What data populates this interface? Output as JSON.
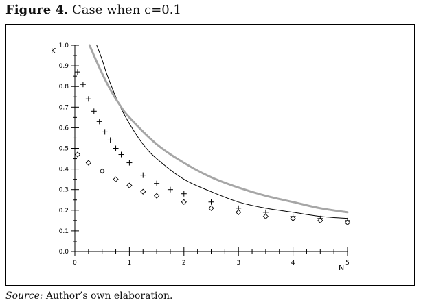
{
  "figure": {
    "label": "Figure 4.",
    "caption": "Case when c=0.1"
  },
  "source": {
    "label": "Source:",
    "text": "Author’s own elaboration."
  },
  "chart_data": {
    "type": "line",
    "xlabel": "N",
    "ylabel": "K",
    "xlim": [
      0,
      5
    ],
    "ylim": [
      0,
      1.0
    ],
    "x_ticks": [
      "0",
      "1",
      "2",
      "3",
      "4",
      "5"
    ],
    "y_ticks": [
      "0.0",
      "0.1",
      "0.2",
      "0.3",
      "0.4",
      "0.5",
      "0.6",
      "0.7",
      "0.8",
      "0.9",
      "1.0"
    ],
    "grid": false,
    "legend": "none",
    "series": [
      {
        "style": "line",
        "color": "#000000",
        "x": [
          0.4,
          0.5,
          0.6,
          0.8,
          1.0,
          1.25,
          1.5,
          2.0,
          2.5,
          3.0,
          3.5,
          4.0,
          4.5,
          5.0
        ],
        "y": [
          1.0,
          0.93,
          0.85,
          0.72,
          0.62,
          0.52,
          0.45,
          0.35,
          0.29,
          0.24,
          0.21,
          0.19,
          0.17,
          0.16
        ]
      },
      {
        "style": "line",
        "color": "#a6a6a6",
        "x": [
          0.27,
          0.4,
          0.6,
          0.8,
          1.0,
          1.5,
          2.0,
          2.5,
          3.0,
          3.5,
          4.0,
          4.5,
          5.0
        ],
        "y": [
          1.0,
          0.92,
          0.81,
          0.72,
          0.65,
          0.52,
          0.43,
          0.36,
          0.31,
          0.27,
          0.24,
          0.21,
          0.19
        ]
      },
      {
        "style": "marker-plus",
        "color": "#000000",
        "x": [
          0.05,
          0.15,
          0.25,
          0.35,
          0.45,
          0.55,
          0.65,
          0.75,
          0.85,
          1.0,
          1.25,
          1.5,
          1.75,
          2.0,
          2.5,
          3.0,
          3.5,
          4.0,
          4.5,
          5.0
        ],
        "y": [
          0.87,
          0.81,
          0.74,
          0.68,
          0.63,
          0.58,
          0.54,
          0.5,
          0.47,
          0.43,
          0.37,
          0.33,
          0.3,
          0.28,
          0.24,
          0.21,
          0.19,
          0.17,
          0.16,
          0.15
        ]
      },
      {
        "style": "marker-diamond",
        "color": "#000000",
        "x": [
          0.05,
          0.25,
          0.5,
          0.75,
          1.0,
          1.25,
          1.5,
          2.0,
          2.5,
          3.0,
          3.5,
          4.0,
          4.5,
          5.0
        ],
        "y": [
          0.47,
          0.43,
          0.39,
          0.35,
          0.32,
          0.29,
          0.27,
          0.24,
          0.21,
          0.19,
          0.17,
          0.16,
          0.15,
          0.14
        ]
      }
    ]
  }
}
